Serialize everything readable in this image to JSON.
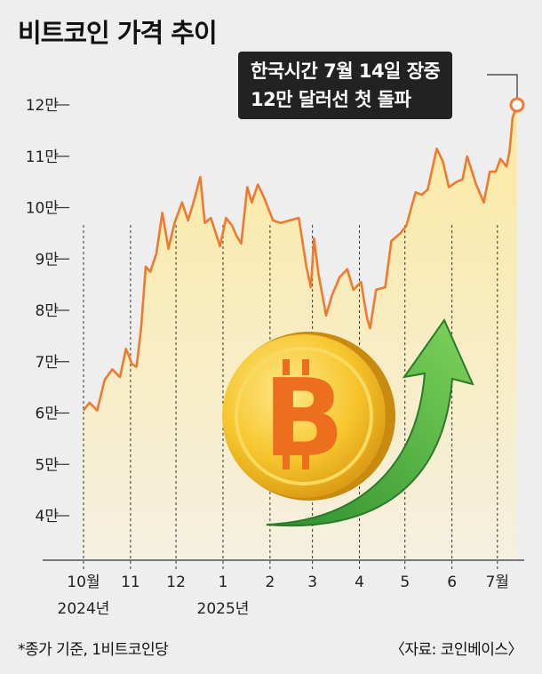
{
  "title": "비트코인 가격 추이",
  "annotation": {
    "line1": "한국시간 7월 14일 장중",
    "line2": "12만 달러선 첫 돌파"
  },
  "footnote": "*종가 기준, 1비트코인당",
  "source": "〈자료: 코인베이스〉",
  "colors": {
    "line": "#ee7a2e",
    "fill_top": "#fbe9a2",
    "fill_bottom": "#f7f2dc",
    "background": "#eeeeee"
  },
  "chart_data": {
    "type": "line",
    "title": "비트코인 가격 추이",
    "unit": "달러",
    "ylim": [
      35000,
      125000
    ],
    "y_ticks": [
      {
        "value": 40000,
        "label": "4만"
      },
      {
        "value": 50000,
        "label": "5만"
      },
      {
        "value": 60000,
        "label": "6만"
      },
      {
        "value": 70000,
        "label": "7만"
      },
      {
        "value": 80000,
        "label": "8만"
      },
      {
        "value": 90000,
        "label": "9만"
      },
      {
        "value": 100000,
        "label": "10만"
      },
      {
        "value": 110000,
        "label": "11만"
      },
      {
        "value": 120000,
        "label": "12만"
      }
    ],
    "x_ticks": [
      {
        "date": "2024-10-01",
        "label": "10월",
        "year_label": "2024년"
      },
      {
        "date": "2024-11-01",
        "label": "11"
      },
      {
        "date": "2024-12-01",
        "label": "12"
      },
      {
        "date": "2025-01-01",
        "label": "1",
        "year_label": "2025년"
      },
      {
        "date": "2025-02-01",
        "label": "2"
      },
      {
        "date": "2025-03-01",
        "label": "3"
      },
      {
        "date": "2025-04-01",
        "label": "4"
      },
      {
        "date": "2025-05-01",
        "label": "5"
      },
      {
        "date": "2025-06-01",
        "label": "6"
      },
      {
        "date": "2025-07-01",
        "label": "7월"
      }
    ],
    "series": [
      {
        "points": [
          [
            "2024-10-01",
            60500
          ],
          [
            "2024-10-05",
            62000
          ],
          [
            "2024-10-10",
            60500
          ],
          [
            "2024-10-15",
            66500
          ],
          [
            "2024-10-20",
            68500
          ],
          [
            "2024-10-25",
            67000
          ],
          [
            "2024-10-29",
            72500
          ],
          [
            "2024-11-02",
            69500
          ],
          [
            "2024-11-05",
            69000
          ],
          [
            "2024-11-08",
            76500
          ],
          [
            "2024-11-11",
            88500
          ],
          [
            "2024-11-14",
            87500
          ],
          [
            "2024-11-18",
            91000
          ],
          [
            "2024-11-22",
            99000
          ],
          [
            "2024-11-26",
            92000
          ],
          [
            "2024-11-30",
            97000
          ],
          [
            "2024-12-05",
            101000
          ],
          [
            "2024-12-09",
            97500
          ],
          [
            "2024-12-13",
            101500
          ],
          [
            "2024-12-17",
            106000
          ],
          [
            "2024-12-20",
            97000
          ],
          [
            "2024-12-24",
            98000
          ],
          [
            "2024-12-30",
            92500
          ],
          [
            "2025-01-03",
            98000
          ],
          [
            "2025-01-07",
            96500
          ],
          [
            "2025-01-10",
            94500
          ],
          [
            "2025-01-13",
            93000
          ],
          [
            "2025-01-17",
            104000
          ],
          [
            "2025-01-20",
            101000
          ],
          [
            "2025-01-24",
            104500
          ],
          [
            "2025-01-28",
            102000
          ],
          [
            "2025-02-03",
            97500
          ],
          [
            "2025-02-08",
            97000
          ],
          [
            "2025-02-14",
            97500
          ],
          [
            "2025-02-20",
            98000
          ],
          [
            "2025-02-25",
            88500
          ],
          [
            "2025-02-28",
            84500
          ],
          [
            "2025-03-02",
            94000
          ],
          [
            "2025-03-05",
            87000
          ],
          [
            "2025-03-10",
            79000
          ],
          [
            "2025-03-14",
            83000
          ],
          [
            "2025-03-19",
            86500
          ],
          [
            "2025-03-24",
            88000
          ],
          [
            "2025-03-28",
            84000
          ],
          [
            "2025-04-02",
            85500
          ],
          [
            "2025-04-06",
            78500
          ],
          [
            "2025-04-08",
            76500
          ],
          [
            "2025-04-12",
            84000
          ],
          [
            "2025-04-18",
            84500
          ],
          [
            "2025-04-22",
            93500
          ],
          [
            "2025-04-28",
            95000
          ],
          [
            "2025-05-02",
            96500
          ],
          [
            "2025-05-08",
            103000
          ],
          [
            "2025-05-12",
            102500
          ],
          [
            "2025-05-16",
            103500
          ],
          [
            "2025-05-22",
            111500
          ],
          [
            "2025-05-26",
            109000
          ],
          [
            "2025-05-30",
            104000
          ],
          [
            "2025-06-04",
            105000
          ],
          [
            "2025-06-08",
            105500
          ],
          [
            "2025-06-11",
            110000
          ],
          [
            "2025-06-17",
            104500
          ],
          [
            "2025-06-22",
            101000
          ],
          [
            "2025-06-26",
            107000
          ],
          [
            "2025-06-30",
            107000
          ],
          [
            "2025-07-03",
            109500
          ],
          [
            "2025-07-07",
            108000
          ],
          [
            "2025-07-09",
            111000
          ],
          [
            "2025-07-11",
            117500
          ],
          [
            "2025-07-14",
            120000
          ]
        ]
      }
    ]
  }
}
